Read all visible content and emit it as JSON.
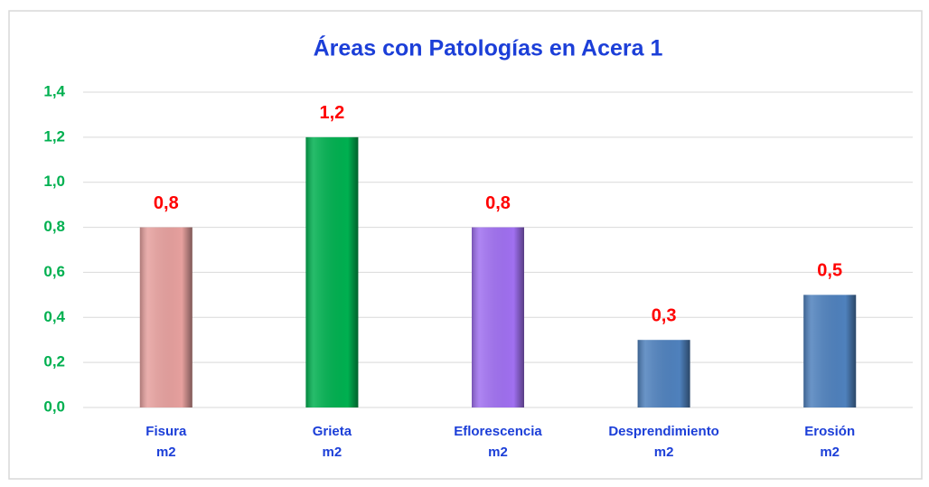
{
  "chart_data": {
    "type": "bar",
    "title": "Áreas con Patologías en Acera 1",
    "categories": [
      "Fisura m2",
      "Grieta m2",
      "Eflorescencia m2",
      "Desprendimiento m2",
      "Erosión m2"
    ],
    "values": [
      0.8,
      1.2,
      0.8,
      0.3,
      0.5
    ],
    "value_labels": [
      "0,8",
      "1,2",
      "0,8",
      "0,3",
      "0,5"
    ],
    "colors": [
      "#e6a09e",
      "#00b050",
      "#a070f0",
      "#4f81bd",
      "#4f81bd"
    ],
    "ylim": [
      0,
      1.4
    ],
    "yticks": [
      {
        "value": 0,
        "label": "0,0"
      },
      {
        "value": 0.2,
        "label": "0,2"
      },
      {
        "value": 0.4,
        "label": "0,4"
      },
      {
        "value": 0.6,
        "label": "0,6"
      },
      {
        "value": 0.8,
        "label": "0,8"
      },
      {
        "value": 1.0,
        "label": "1,0"
      },
      {
        "value": 1.2,
        "label": "1,2"
      },
      {
        "value": 1.4,
        "label": "1,4"
      }
    ],
    "grid": true
  }
}
